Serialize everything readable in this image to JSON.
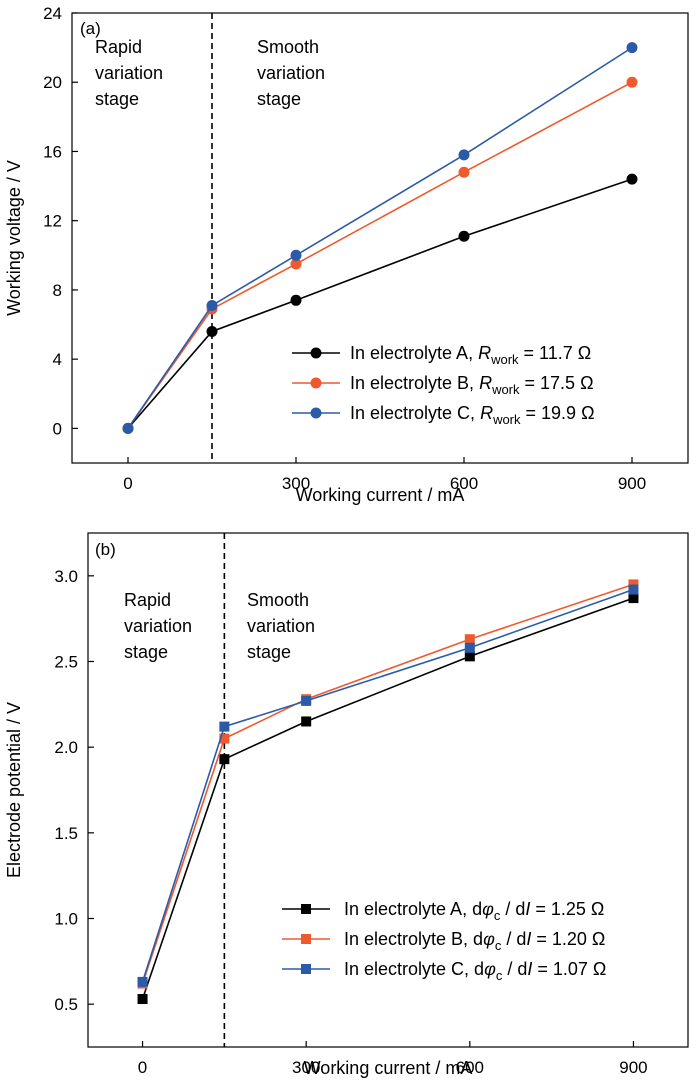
{
  "chart_data": [
    {
      "type": "line",
      "panel_label": "(a)",
      "xlabel": "Working current / mA",
      "ylabel": "Working voltage / V",
      "xlim": [
        -100,
        1000
      ],
      "ylim": [
        -2,
        24
      ],
      "xticks": [
        0,
        300,
        600,
        900
      ],
      "yticks": [
        0,
        4,
        8,
        12,
        16,
        20,
        24
      ],
      "marker": "circle",
      "stage_boundary": 150,
      "stage_left_label": [
        "Rapid",
        "variation",
        "stage"
      ],
      "stage_right_label": [
        "Smooth",
        "variation",
        "stage"
      ],
      "legend_position": "lower-right",
      "grid": false,
      "x": [
        0,
        150,
        300,
        600,
        900
      ],
      "series": [
        {
          "legend_main": "In electrolyte A, ",
          "legend_sym": "R",
          "legend_sub": "work",
          "legend_tail": " = 11.7 Ω",
          "color": "#000000",
          "values": [
            0,
            5.6,
            7.4,
            11.1,
            14.4
          ]
        },
        {
          "legend_main": "In electrolyte B, ",
          "legend_sym": "R",
          "legend_sub": "work",
          "legend_tail": " = 17.5  Ω",
          "color": "#EE5A2E",
          "values": [
            0,
            6.9,
            9.5,
            14.8,
            20.0
          ]
        },
        {
          "legend_main": "In electrolyte C, ",
          "legend_sym": "R",
          "legend_sub": "work",
          "legend_tail": " = 19.9  Ω",
          "color": "#2B5BA8",
          "values": [
            0,
            7.1,
            10.0,
            15.8,
            22.0
          ]
        }
      ]
    },
    {
      "type": "line",
      "panel_label": "(b)",
      "xlabel": "Working current / mA",
      "ylabel": "Electrode potential / V",
      "xlim": [
        -100,
        1000
      ],
      "ylim": [
        0.25,
        3.25
      ],
      "xticks": [
        0,
        300,
        600,
        900
      ],
      "yticks": [
        0.5,
        1.0,
        1.5,
        2.0,
        2.5,
        3.0
      ],
      "ytick_labels": [
        "0.5",
        "1.0",
        "1.5",
        "2.0",
        "2.5",
        "3.0"
      ],
      "marker": "square",
      "stage_boundary": 150,
      "stage_left_label": [
        "Rapid",
        "variation",
        "stage"
      ],
      "stage_right_label": [
        "Smooth",
        "variation",
        "stage"
      ],
      "legend_position": "lower-right",
      "grid": false,
      "x": [
        0,
        150,
        300,
        600,
        900
      ],
      "series": [
        {
          "legend_main": "In electrolyte A, d",
          "legend_sym": "φ",
          "legend_sub": "c",
          "legend_mid": " / d",
          "legend_sym2": "I",
          "legend_tail": " = 1.25 Ω",
          "color": "#000000",
          "values": [
            0.53,
            1.93,
            2.15,
            2.53,
            2.87
          ]
        },
        {
          "legend_main": "In electrolyte B, d",
          "legend_sym": "φ",
          "legend_sub": "c",
          "legend_mid": " / d",
          "legend_sym2": "I",
          "legend_tail": " = 1.20 Ω",
          "color": "#EE5A2E",
          "values": [
            0.62,
            2.05,
            2.28,
            2.63,
            2.95
          ]
        },
        {
          "legend_main": "In electrolyte C, d",
          "legend_sym": "φ",
          "legend_sub": "c",
          "legend_mid": " / d",
          "legend_sym2": "I",
          "legend_tail": " = 1.07 Ω",
          "color": "#2B5BA8",
          "values": [
            0.63,
            2.12,
            2.27,
            2.58,
            2.92
          ]
        }
      ]
    }
  ]
}
